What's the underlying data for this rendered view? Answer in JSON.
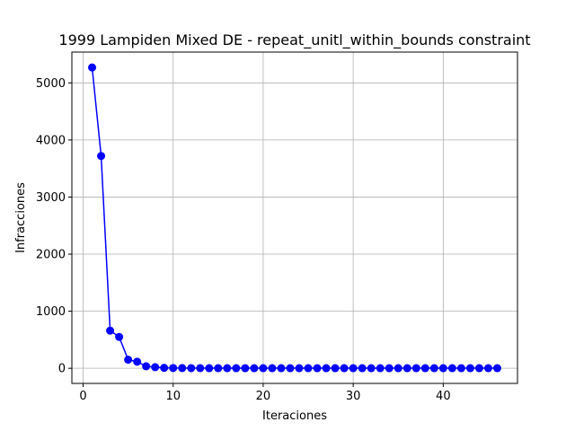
{
  "chart_data": {
    "type": "line",
    "title": "1999 Lampiden Mixed DE - repeat_unitl_within_bounds constraint",
    "xlabel": "Iteraciones",
    "ylabel": "Infracciones",
    "xlim": [
      -1.25,
      48.25
    ],
    "ylim": [
      -265,
      5540
    ],
    "xticks": [
      0,
      10,
      20,
      30,
      40
    ],
    "yticks": [
      0,
      1000,
      2000,
      3000,
      4000,
      5000
    ],
    "grid": true,
    "series": [
      {
        "color": "#0000ff",
        "marker": "circle",
        "x": [
          1,
          2,
          3,
          4,
          5,
          6,
          7,
          8,
          9,
          10,
          11,
          12,
          13,
          14,
          15,
          16,
          17,
          18,
          19,
          20,
          21,
          22,
          23,
          24,
          25,
          26,
          27,
          28,
          29,
          30,
          31,
          32,
          33,
          34,
          35,
          36,
          37,
          38,
          39,
          40,
          41,
          42,
          43,
          44,
          45,
          46
        ],
        "y": [
          5270,
          3720,
          660,
          550,
          150,
          115,
          35,
          20,
          8,
          5,
          4,
          3,
          3,
          2,
          2,
          2,
          2,
          2,
          2,
          2,
          2,
          2,
          2,
          2,
          2,
          2,
          2,
          2,
          2,
          2,
          2,
          2,
          2,
          2,
          2,
          2,
          2,
          2,
          2,
          2,
          2,
          2,
          2,
          2,
          2,
          2
        ]
      }
    ]
  }
}
